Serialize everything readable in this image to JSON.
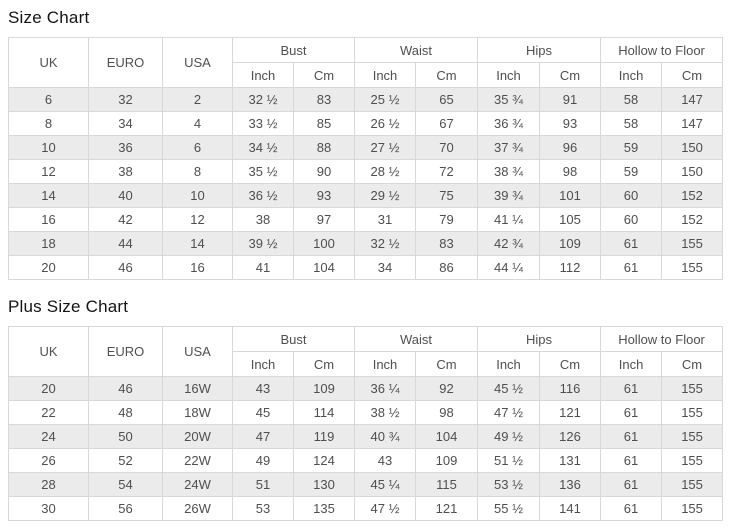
{
  "page": {
    "background_color": "#ffffff",
    "stripe_row_color": "#ebebeb",
    "border_color": "#d8d8d8",
    "text_color": "#4f4f4f",
    "title_color": "#141414"
  },
  "tables": [
    {
      "title": "Size Chart",
      "simple_columns": [
        "UK",
        "EURO",
        "USA"
      ],
      "group_columns": [
        "Bust",
        "Waist",
        "Hips",
        "Hollow to Floor"
      ],
      "unit_headers": [
        "Inch",
        "Cm"
      ],
      "rows": [
        [
          "6",
          "32",
          "2",
          "32 ½",
          "83",
          "25 ½",
          "65",
          "35 ¾",
          "91",
          "58",
          "147"
        ],
        [
          "8",
          "34",
          "4",
          "33 ½",
          "85",
          "26 ½",
          "67",
          "36 ¾",
          "93",
          "58",
          "147"
        ],
        [
          "10",
          "36",
          "6",
          "34 ½",
          "88",
          "27 ½",
          "70",
          "37 ¾",
          "96",
          "59",
          "150"
        ],
        [
          "12",
          "38",
          "8",
          "35 ½",
          "90",
          "28 ½",
          "72",
          "38 ¾",
          "98",
          "59",
          "150"
        ],
        [
          "14",
          "40",
          "10",
          "36 ½",
          "93",
          "29 ½",
          "75",
          "39 ¾",
          "101",
          "60",
          "152"
        ],
        [
          "16",
          "42",
          "12",
          "38",
          "97",
          "31",
          "79",
          "41 ¼",
          "105",
          "60",
          "152"
        ],
        [
          "18",
          "44",
          "14",
          "39 ½",
          "100",
          "32 ½",
          "83",
          "42 ¾",
          "109",
          "61",
          "155"
        ],
        [
          "20",
          "46",
          "16",
          "41",
          "104",
          "34",
          "86",
          "44 ¼",
          "112",
          "61",
          "155"
        ]
      ]
    },
    {
      "title": "Plus Size Chart",
      "simple_columns": [
        "UK",
        "EURO",
        "USA"
      ],
      "group_columns": [
        "Bust",
        "Waist",
        "Hips",
        "Hollow to Floor"
      ],
      "unit_headers": [
        "Inch",
        "Cm"
      ],
      "rows": [
        [
          "20",
          "46",
          "16W",
          "43",
          "109",
          "36 ¼",
          "92",
          "45 ½",
          "116",
          "61",
          "155"
        ],
        [
          "22",
          "48",
          "18W",
          "45",
          "114",
          "38 ½",
          "98",
          "47 ½",
          "121",
          "61",
          "155"
        ],
        [
          "24",
          "50",
          "20W",
          "47",
          "119",
          "40 ¾",
          "104",
          "49 ½",
          "126",
          "61",
          "155"
        ],
        [
          "26",
          "52",
          "22W",
          "49",
          "124",
          "43",
          "109",
          "51 ½",
          "131",
          "61",
          "155"
        ],
        [
          "28",
          "54",
          "24W",
          "51",
          "130",
          "45 ¼",
          "115",
          "53 ½",
          "136",
          "61",
          "155"
        ],
        [
          "30",
          "56",
          "26W",
          "53",
          "135",
          "47 ½",
          "121",
          "55 ½",
          "141",
          "61",
          "155"
        ]
      ]
    }
  ]
}
